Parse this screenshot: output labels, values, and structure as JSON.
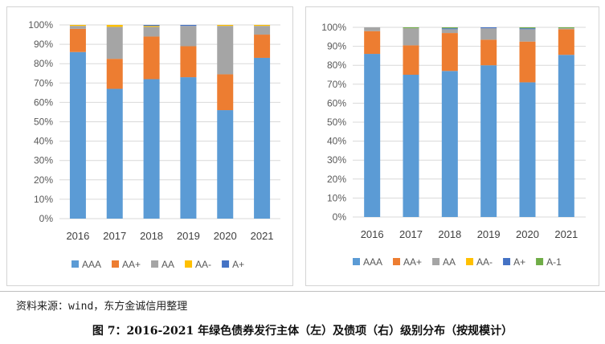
{
  "colors": {
    "AAA": "#5b9bd5",
    "AA+": "#ed7d31",
    "AA": "#a5a5a5",
    "AA-": "#ffc000",
    "A+": "#4472c4",
    "A-1": "#70ad47"
  },
  "chart_data": [
    {
      "type": "bar",
      "stacked": true,
      "categories": [
        "2016",
        "2017",
        "2018",
        "2019",
        "2020",
        "2021"
      ],
      "ylim": [
        0,
        1
      ],
      "yticks": [
        "0%",
        "10%",
        "20%",
        "30%",
        "40%",
        "50%",
        "60%",
        "70%",
        "80%",
        "90%",
        "100%"
      ],
      "legend_position": "bottom",
      "series": [
        {
          "name": "AAA",
          "values": [
            0.86,
            0.67,
            0.72,
            0.73,
            0.56,
            0.83
          ]
        },
        {
          "name": "AA+",
          "values": [
            0.12,
            0.155,
            0.22,
            0.16,
            0.185,
            0.12
          ]
        },
        {
          "name": "AA",
          "values": [
            0.015,
            0.165,
            0.05,
            0.105,
            0.25,
            0.045
          ]
        },
        {
          "name": "AA-",
          "values": [
            0.005,
            0.01,
            0.005,
            0.0,
            0.005,
            0.005
          ]
        },
        {
          "name": "A+",
          "values": [
            0.0,
            0.0,
            0.005,
            0.005,
            0.0,
            0.0
          ]
        }
      ]
    },
    {
      "type": "bar",
      "stacked": true,
      "categories": [
        "2016",
        "2017",
        "2018",
        "2019",
        "2020",
        "2021"
      ],
      "ylim": [
        0,
        1
      ],
      "yticks": [
        "0%",
        "10%",
        "20%",
        "30%",
        "40%",
        "50%",
        "60%",
        "70%",
        "80%",
        "90%",
        "100%"
      ],
      "legend_position": "bottom",
      "series": [
        {
          "name": "AAA",
          "values": [
            0.86,
            0.75,
            0.77,
            0.8,
            0.71,
            0.855
          ]
        },
        {
          "name": "AA+",
          "values": [
            0.12,
            0.155,
            0.2,
            0.135,
            0.215,
            0.135
          ]
        },
        {
          "name": "AA",
          "values": [
            0.02,
            0.09,
            0.02,
            0.06,
            0.065,
            0.005
          ]
        },
        {
          "name": "AA-",
          "values": [
            0.0,
            0.0,
            0.0,
            0.0,
            0.0,
            0.0
          ]
        },
        {
          "name": "A+",
          "values": [
            0.0,
            0.0,
            0.005,
            0.005,
            0.005,
            0.0
          ]
        },
        {
          "name": "A-1",
          "values": [
            0.0,
            0.005,
            0.005,
            0.0,
            0.005,
            0.005
          ]
        }
      ]
    }
  ],
  "source_text": "资料来源：wind，东方金诚信用整理",
  "caption": "图 7：2016-2021 年绿色债券发行主体（左）及债项（右）级别分布（按规模计）"
}
